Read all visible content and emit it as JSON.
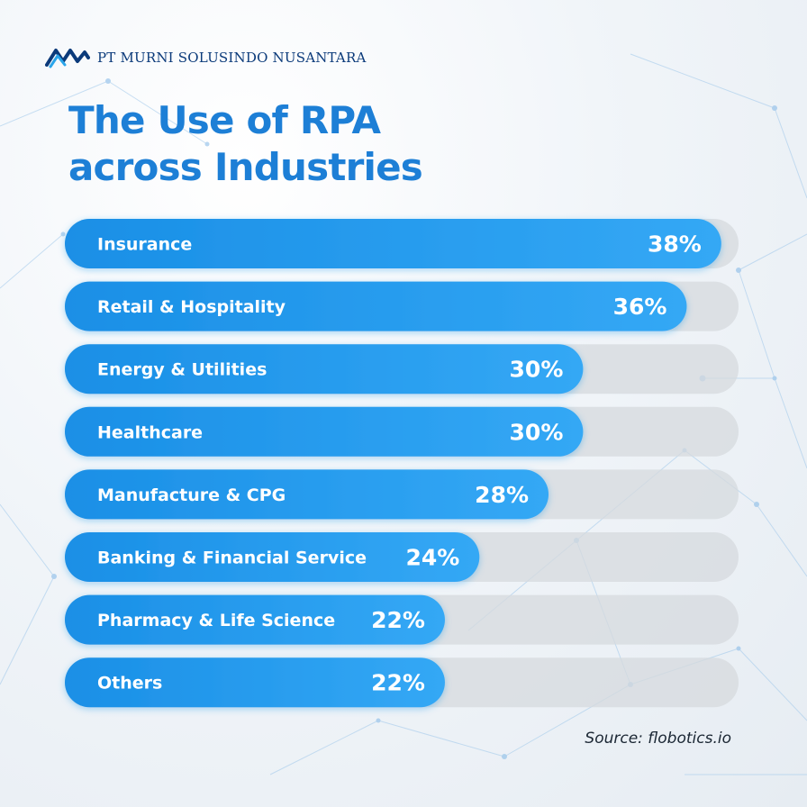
{
  "brand": {
    "name": "PT MURNI SOLUSINDO NUSANTARA",
    "logo_icon": "zigzag-wave-logo-icon"
  },
  "title": {
    "line1": "The Use of RPA",
    "line2": "across Industries"
  },
  "colors": {
    "bar": "#1a8fe6",
    "bar_light": "#34a8f5",
    "track": "#d5dade",
    "title": "#1d7fd6",
    "brand": "#0b3a7a"
  },
  "chart_data": {
    "type": "bar",
    "orientation": "horizontal",
    "title": "The Use of RPA across Industries",
    "categories": [
      "Insurance",
      "Retail & Hospitality",
      "Energy & Utilities",
      "Healthcare",
      "Manufacture & CPG",
      "Banking & Financial Service",
      "Pharmacy & Life Science",
      "Others"
    ],
    "values": [
      38,
      36,
      30,
      30,
      28,
      24,
      22,
      22
    ],
    "value_labels": [
      "38%",
      "36%",
      "30%",
      "30%",
      "28%",
      "24%",
      "22%",
      "22%"
    ],
    "unit": "%",
    "xlim": [
      0,
      39
    ]
  },
  "source": "Source: flobotics.io"
}
